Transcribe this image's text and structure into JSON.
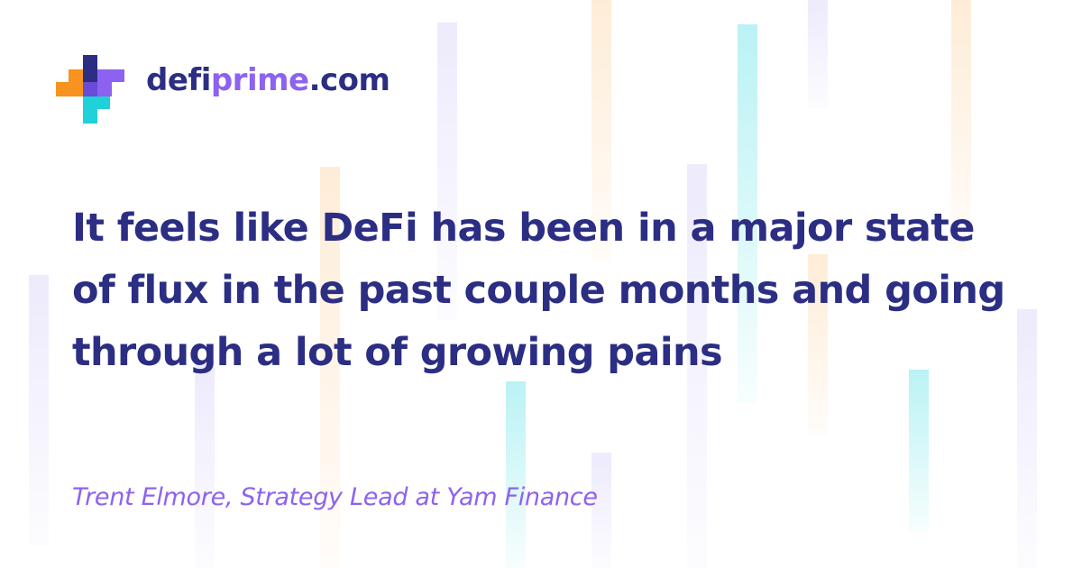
{
  "brand": {
    "part1": "defi",
    "part2": "prime",
    "part3": ".com"
  },
  "quote": {
    "text": "It feels like DeFi has been in a major state of flux in the past couple months and going through a lot of growing pains"
  },
  "attribution": {
    "text": "Trent Elmore, Strategy Lead at Yam Finance"
  },
  "colors": {
    "headline": "#2b2e83",
    "accent": "#8d62f0",
    "logo_orange": "#f7931e",
    "logo_cyan": "#1fd1d8",
    "logo_purple": "#8d62f0",
    "logo_navy": "#2b2e83"
  }
}
